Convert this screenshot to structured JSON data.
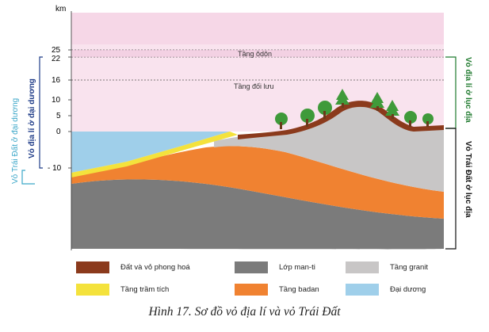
{
  "axis": {
    "unit": "km",
    "ticks": [
      {
        "label": "25",
        "value": 25
      },
      {
        "label": "22",
        "value": 22
      },
      {
        "label": "16",
        "value": 16
      },
      {
        "label": "10",
        "value": 10
      },
      {
        "label": "5",
        "value": 5
      },
      {
        "label": "0",
        "value": 0
      },
      {
        "label": "- 10",
        "value": -10
      }
    ]
  },
  "layers_atmosphere": {
    "ozone": "Tầng ôdôn",
    "troposphere": "Tầng đối lưu"
  },
  "side_labels": {
    "ocean_crust": "Vỏ Trái Đất ở đại dương",
    "ocean_geo": "Vỏ địa lí ở đại dương",
    "land_geo": "Vỏ địa lí ở lục địa",
    "land_crust": "Vỏ Trái Đất ở lục địa"
  },
  "legend": [
    {
      "key": "soil",
      "label": "Đất và vỏ phong hoá",
      "color": "#8b3a1c"
    },
    {
      "key": "mantle",
      "label": "Lớp man-ti",
      "color": "#7b7b7b"
    },
    {
      "key": "granite",
      "label": "Tầng granit",
      "color": "#c8c6c6"
    },
    {
      "key": "sediment",
      "label": "Tầng trầm tích",
      "color": "#f4e23c"
    },
    {
      "key": "basalt",
      "label": "Tầng badan",
      "color": "#f08231"
    },
    {
      "key": "ocean",
      "label": "Đại dương",
      "color": "#9fcfea"
    }
  ],
  "colors": {
    "sky": "#f9e3ee",
    "ocean_crust_label": "#3aa6c8",
    "ocean_geo_label": "#1f3c88",
    "land_geo_label": "#1f7a2e",
    "land_crust_label": "#111111",
    "tree_green": "#3f9a3a"
  },
  "caption": "Hình 17. Sơ đồ vỏ địa lí và vỏ Trái Đất"
}
